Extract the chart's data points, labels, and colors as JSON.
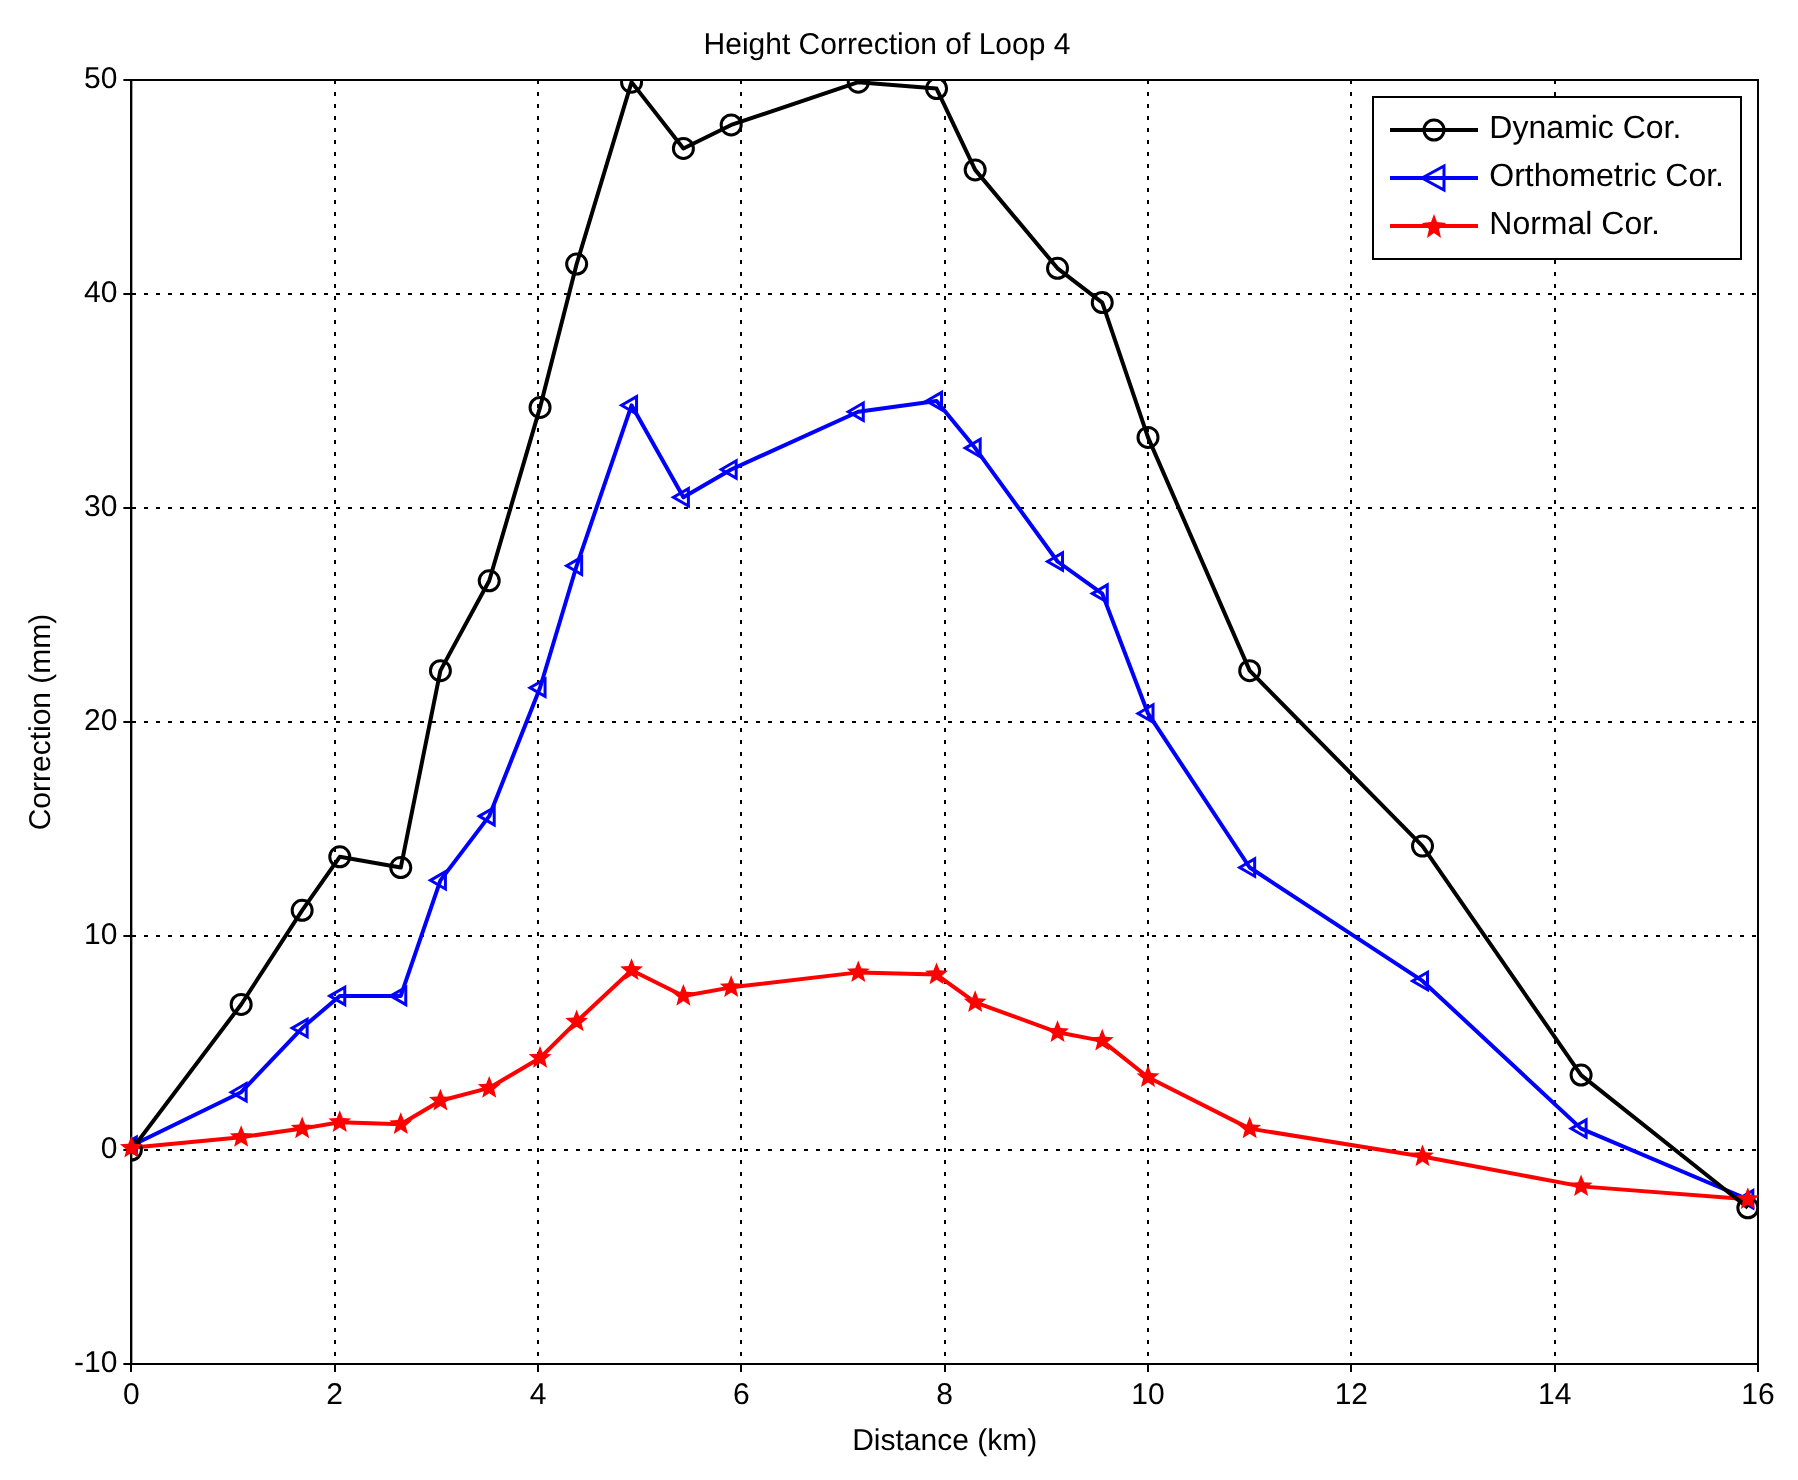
{
  "chart_data": {
    "type": "line",
    "title": "Height Correction of Loop 4",
    "xlabel": "Distance (km)",
    "ylabel": "Correction (mm)",
    "x": [
      0,
      1.08,
      1.68,
      2.05,
      2.65,
      3.04,
      3.52,
      4.02,
      4.38,
      4.92,
      5.43,
      5.9,
      7.15,
      7.92,
      8.3,
      9.11,
      9.55,
      10.0,
      11.0,
      12.7,
      14.26,
      15.9
    ],
    "series": [
      {
        "name": "Dynamic Cor.",
        "color": "#000000",
        "marker": "circle",
        "values": [
          0,
          6.8,
          11.2,
          13.7,
          13.2,
          22.4,
          26.6,
          34.7,
          41.4,
          49.9,
          46.8,
          47.9,
          49.9,
          49.6,
          45.8,
          41.2,
          39.6,
          33.3,
          22.4,
          14.2,
          3.5,
          -2.7
        ]
      },
      {
        "name": "Orthometric Cor.",
        "color": "#0000ff",
        "marker": "triangle",
        "values": [
          0.2,
          2.7,
          5.7,
          7.2,
          7.2,
          12.6,
          15.6,
          21.6,
          27.3,
          34.8,
          30.5,
          31.8,
          34.5,
          35.0,
          32.8,
          27.5,
          26.0,
          20.4,
          13.2,
          7.9,
          1.0,
          -2.3
        ]
      },
      {
        "name": "Normal Cor.",
        "color": "#ff0000",
        "marker": "star",
        "values": [
          0.1,
          0.6,
          1.0,
          1.3,
          1.2,
          2.3,
          2.9,
          4.3,
          6.0,
          8.4,
          7.2,
          7.6,
          8.3,
          8.2,
          6.9,
          5.5,
          5.1,
          3.4,
          1.0,
          -0.3,
          -1.7,
          -2.3
        ]
      }
    ],
    "xlim": [
      0,
      16
    ],
    "xticks": [
      0,
      2,
      4,
      6,
      8,
      10,
      12,
      14,
      16
    ],
    "ylim": [
      -10,
      50
    ],
    "yticks": [
      -10,
      0,
      10,
      20,
      30,
      40,
      50
    ],
    "grid": true,
    "legend": "top right"
  }
}
